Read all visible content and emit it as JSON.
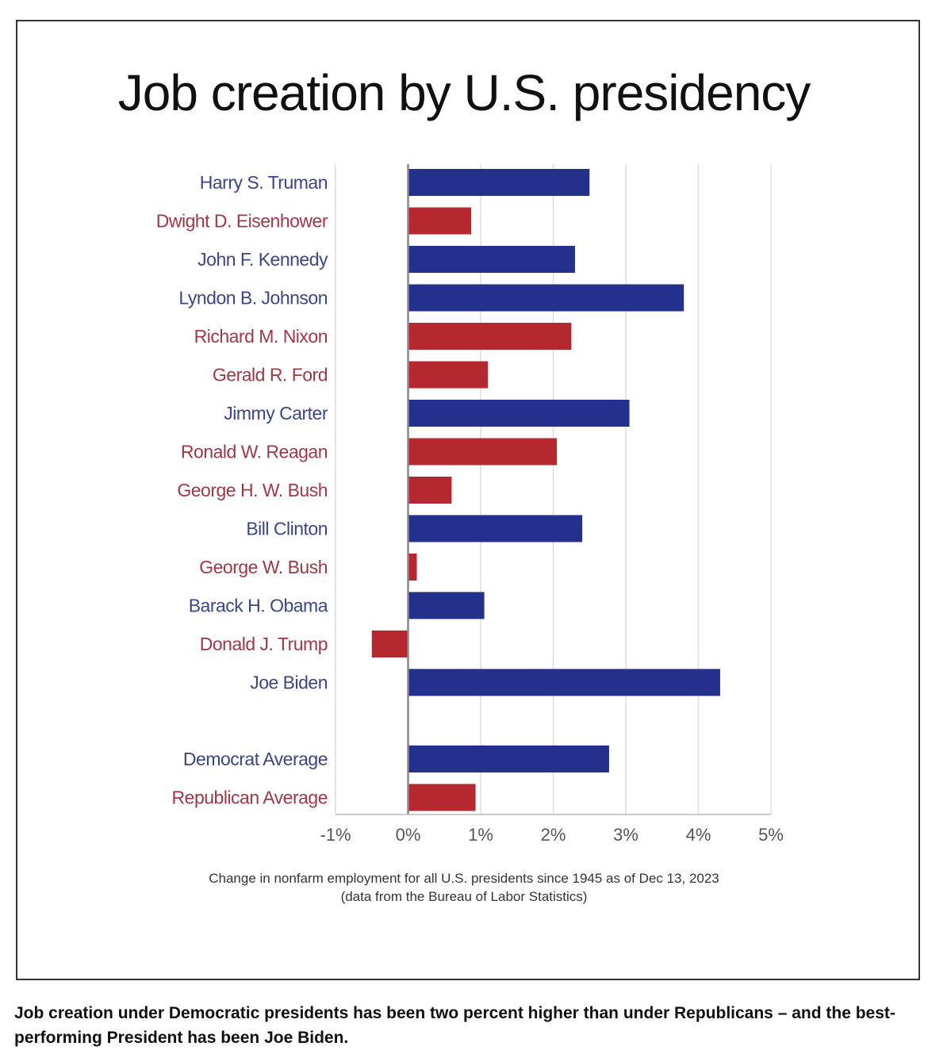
{
  "chart_data": {
    "type": "bar",
    "orientation": "horizontal",
    "title": "Job creation by U.S. presidency",
    "caption_line1": "Change in nonfarm employment for all U.S. presidents since 1945 as of Dec 13, 2023",
    "caption_line2": "(data from the Bureau of Labor Statistics)",
    "xlim": [
      -1,
      5
    ],
    "xticks": [
      -1,
      0,
      1,
      2,
      3,
      4,
      5
    ],
    "xtick_labels": [
      "-1%",
      "0%",
      "1%",
      "2%",
      "3%",
      "4%",
      "5%"
    ],
    "grid": "vertical",
    "categories": [
      "Harry S. Truman",
      "Dwight D. Eisenhower",
      "John F. Kennedy",
      "Lyndon B. Johnson",
      "Richard M. Nixon",
      "Gerald R. Ford",
      "Jimmy Carter",
      "Ronald W. Reagan",
      "George H. W. Bush",
      "Bill Clinton",
      "George W. Bush",
      "Barack H. Obama",
      "Donald J. Trump",
      "Joe Biden",
      "Democrat Average",
      "Republican Average"
    ],
    "values": [
      2.5,
      0.87,
      2.3,
      3.8,
      2.25,
      1.1,
      3.05,
      2.05,
      0.6,
      2.4,
      0.12,
      1.05,
      -0.5,
      4.3,
      2.77,
      0.93
    ],
    "party": [
      "D",
      "R",
      "D",
      "D",
      "R",
      "R",
      "D",
      "R",
      "R",
      "D",
      "R",
      "D",
      "R",
      "D",
      "D",
      "R"
    ],
    "colors": {
      "D": "#23318c",
      "R": "#b5282f"
    },
    "label_colors": {
      "D": "#3c4585",
      "R": "#9f3846"
    }
  },
  "footer_text": "Job creation under Democratic presidents has been two percent higher than under Republicans – and the best-performing President has been Joe Biden."
}
